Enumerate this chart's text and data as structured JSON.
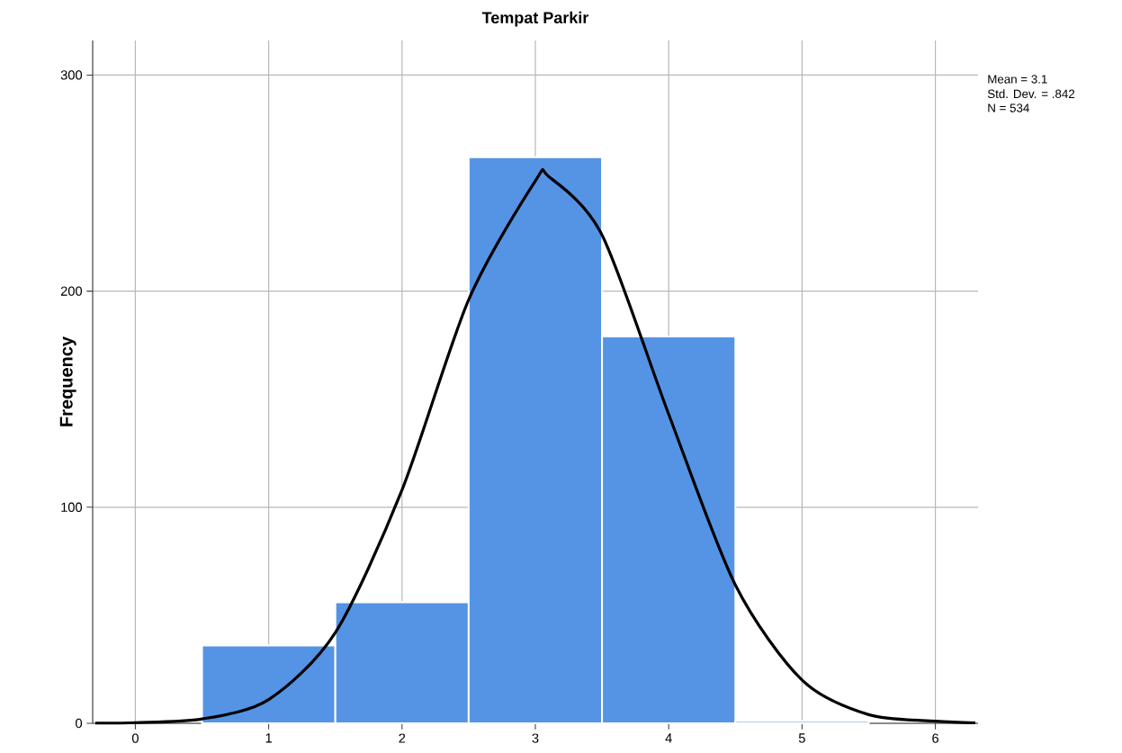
{
  "chart_data": {
    "type": "histogram",
    "title": "Tempat Parkir",
    "ylabel": "Frequency",
    "bins": [
      0.5,
      1.5,
      2.5,
      3.5,
      4.5,
      5.5
    ],
    "values": [
      36,
      56,
      262,
      179,
      1
    ],
    "color": "#5594e4",
    "series": [
      {
        "type": "line",
        "color": "#000000",
        "x": [
          -0.3,
          0,
          0.5,
          1,
          1.5,
          2,
          2.5,
          3,
          3.1,
          3.5,
          4,
          4.5,
          5,
          5.5,
          6,
          6.3
        ],
        "values": [
          0.1,
          0.3,
          2,
          11,
          42,
          108,
          196,
          251,
          253,
          226,
          143,
          64,
          20,
          4,
          1,
          0.2
        ]
      }
    ],
    "xlim": [
      -0.32,
      6.32
    ],
    "ylim": [
      0,
      316
    ],
    "xticks": [
      0,
      1,
      2,
      3,
      4,
      5,
      6
    ],
    "yticks": [
      0,
      100,
      200,
      300
    ],
    "grid": true,
    "annotations": [
      "Mean = 3.1",
      "Std. Dev. = .842",
      "N = 534"
    ]
  }
}
